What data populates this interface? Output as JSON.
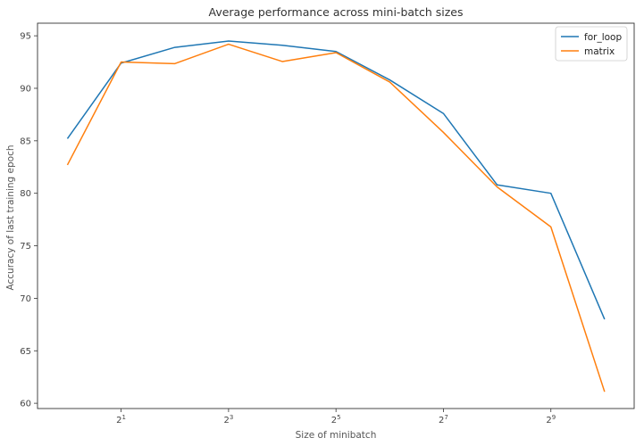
{
  "chart_data": {
    "type": "line",
    "title": "Average performance across mini-batch sizes",
    "xlabel": "Size of minibatch",
    "ylabel": "Accuracy of last training epoch",
    "x_scale": "log2",
    "x": [
      1,
      2,
      4,
      8,
      16,
      32,
      64,
      128,
      256,
      512,
      1024
    ],
    "xlim": [
      0.68,
      1500
    ],
    "ylim": [
      59.5,
      96.2
    ],
    "x_ticks": [
      {
        "value": 2,
        "base": "2",
        "exp": "1"
      },
      {
        "value": 8,
        "base": "2",
        "exp": "3"
      },
      {
        "value": 32,
        "base": "2",
        "exp": "5"
      },
      {
        "value": 128,
        "base": "2",
        "exp": "7"
      },
      {
        "value": 512,
        "base": "2",
        "exp": "9"
      }
    ],
    "y_ticks": [
      60,
      65,
      70,
      75,
      80,
      85,
      90,
      95
    ],
    "grid": false,
    "legend_position": "top-right",
    "series": [
      {
        "name": "for_loop",
        "color": "#1f77b4",
        "values": [
          85.2,
          92.4,
          93.9,
          94.5,
          94.1,
          93.5,
          90.8,
          87.6,
          80.8,
          80.0,
          68.0
        ]
      },
      {
        "name": "matrix",
        "color": "#ff7f0e",
        "values": [
          82.7,
          92.5,
          92.35,
          94.2,
          92.55,
          93.4,
          90.6,
          85.8,
          80.6,
          76.8,
          61.1
        ]
      }
    ]
  }
}
